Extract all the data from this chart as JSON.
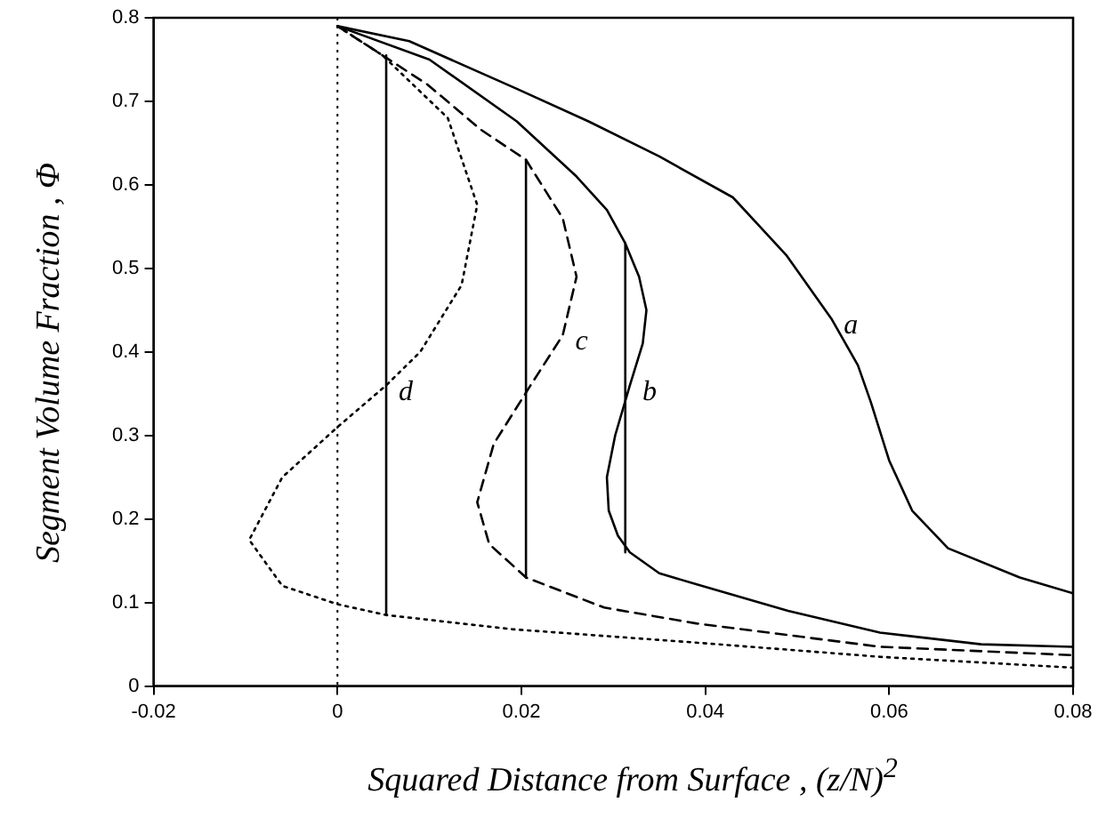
{
  "chart_data": {
    "type": "line",
    "xlabel": "Squared Distance  from Surface , (z/N)$^{2}$",
    "ylabel": "Segment Volume Fraction , Φ",
    "xlim": [
      -0.02,
      0.08
    ],
    "xticks": [
      -0.02,
      0,
      0.02,
      0.04,
      0.06,
      0.08
    ],
    "ylim": [
      0,
      0.8
    ],
    "yticks": [
      0,
      0.1,
      0.2,
      0.3,
      0.4,
      0.5,
      0.6,
      0.7,
      0.8
    ],
    "grid": false,
    "legend": false,
    "marker": "none",
    "series": [
      {
        "color": "#000000",
        "line_style": "solid",
        "x": [
          0,
          0.0078,
          0.0195,
          0.0273,
          0.035,
          0.043,
          0.0488,
          0.0537,
          0.0566,
          0.058,
          0.06,
          0.0625,
          0.0664,
          0.0742,
          0.08
        ],
        "values": [
          0.79,
          0.772,
          0.715,
          0.676,
          0.634,
          0.585,
          0.516,
          0.44,
          0.384,
          0.34,
          0.27,
          0.21,
          0.165,
          0.13,
          0.111
        ]
      },
      {
        "color": "#000000",
        "line_style": "solid",
        "x": [
          0,
          0.01,
          0.0195,
          0.026,
          0.0293,
          0.0313,
          0.0328,
          0.0336,
          0.0332,
          0.0318,
          0.0302,
          0.0293,
          0.0295,
          0.0305,
          0.0318,
          0.035,
          0.039,
          0.049,
          0.059,
          0.07,
          0.08
        ],
        "values": [
          0.79,
          0.75,
          0.676,
          0.61,
          0.57,
          0.53,
          0.49,
          0.45,
          0.41,
          0.36,
          0.3,
          0.25,
          0.21,
          0.18,
          0.16,
          0.135,
          0.122,
          0.09,
          0.064,
          0.05,
          0.047
        ]
      },
      {
        "color": "#000000",
        "line_style": "dashed",
        "x": [
          0,
          0.0098,
          0.0156,
          0.0205,
          0.0245,
          0.026,
          0.0245,
          0.021,
          0.017,
          0.0152,
          0.0165,
          0.0205,
          0.029,
          0.039,
          0.059,
          0.08
        ],
        "values": [
          0.79,
          0.72,
          0.666,
          0.63,
          0.56,
          0.49,
          0.42,
          0.36,
          0.29,
          0.22,
          0.17,
          0.13,
          0.094,
          0.075,
          0.047,
          0.037
        ]
      },
      {
        "color": "#000000",
        "line_style": "dotted",
        "x": [
          0,
          0.0049,
          0.012,
          0.0152,
          0.0135,
          0.009,
          0.0053,
          0,
          -0.006,
          -0.0096,
          -0.006,
          0,
          0.0053,
          0.019,
          0.039,
          0.059,
          0.08
        ],
        "values": [
          0.79,
          0.755,
          0.68,
          0.576,
          0.48,
          0.4,
          0.36,
          0.31,
          0.25,
          0.175,
          0.12,
          0.098,
          0.085,
          0.068,
          0.052,
          0.035,
          0.022
        ]
      },
      {
        "color": "#000000",
        "line_style": "solid",
        "x": [
          0.0053,
          0.0053
        ],
        "values": [
          0.755,
          0.085
        ]
      },
      {
        "color": "#000000",
        "line_style": "solid",
        "x": [
          0.0205,
          0.0205
        ],
        "values": [
          0.63,
          0.13
        ]
      },
      {
        "color": "#000000",
        "line_style": "solid",
        "x": [
          0.0313,
          0.0313
        ],
        "values": [
          0.53,
          0.16
        ]
      }
    ],
    "ref_lines": [
      {
        "axis": "x",
        "value": 0,
        "line_style": "dotted",
        "color": "#000000"
      }
    ],
    "annotations": [
      {
        "text": "a",
        "x": 0.0537,
        "y": 0.44
      },
      {
        "text": "b",
        "x": 0.0318,
        "y": 0.36
      },
      {
        "text": "c",
        "x": 0.0245,
        "y": 0.42
      },
      {
        "text": "d",
        "x": 0.0053,
        "y": 0.36
      }
    ]
  }
}
